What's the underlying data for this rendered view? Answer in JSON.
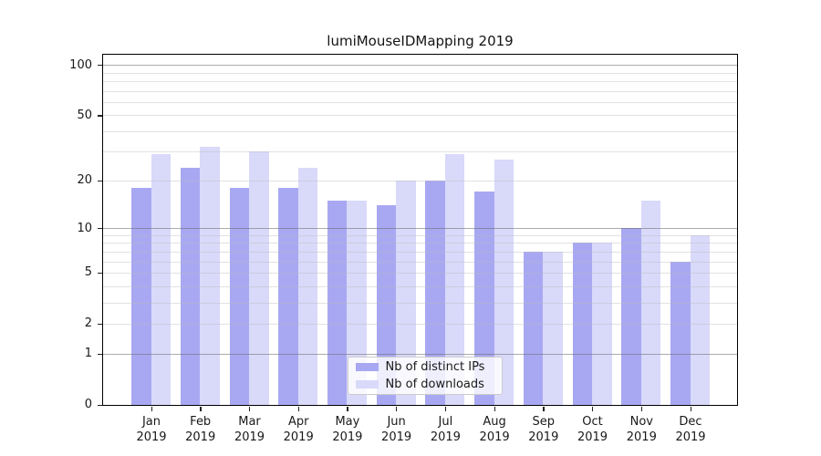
{
  "title": "lumiMouseIDMapping 2019",
  "chart_data": {
    "type": "bar",
    "title": "lumiMouseIDMapping 2019",
    "categories": [
      "Jan 2019",
      "Feb 2019",
      "Mar 2019",
      "Apr 2019",
      "May 2019",
      "Jun 2019",
      "Jul 2019",
      "Aug 2019",
      "Sep 2019",
      "Oct 2019",
      "Nov 2019",
      "Dec 2019"
    ],
    "series": [
      {
        "name": "Nb of distinct IPs",
        "color": "#a8a8f2",
        "values": [
          18,
          24,
          18,
          18,
          15,
          14,
          20,
          17,
          7,
          8,
          10,
          6
        ]
      },
      {
        "name": "Nb of downloads",
        "color": "#d9d9fa",
        "values": [
          29,
          32,
          30,
          24,
          15,
          20,
          29,
          27,
          7,
          8,
          15,
          9
        ]
      }
    ],
    "xlabel": "",
    "ylabel": "",
    "yscale": "log1p",
    "yticks": [
      0,
      1,
      2,
      5,
      10,
      20,
      50,
      100
    ],
    "minor_gridlines": [
      3,
      4,
      6,
      7,
      8,
      9,
      30,
      40,
      60,
      70,
      80,
      90
    ],
    "major_gridline_values": [
      1,
      10,
      100
    ],
    "ylim": [
      0,
      116
    ],
    "grid": true,
    "legend_position": "lower center"
  },
  "legend": {
    "items": [
      {
        "label": "Nb of distinct IPs",
        "color": "#a8a8f2"
      },
      {
        "label": "Nb of downloads",
        "color": "#d9d9fa"
      }
    ]
  },
  "colors": {
    "series_dark": "#a8a8f2",
    "series_light": "#d9d9fa",
    "grid_major": "#b0b0b0",
    "grid_light": "#e7e7e7",
    "spine": "#000000",
    "text": "#191919",
    "background": "#ffffff"
  }
}
